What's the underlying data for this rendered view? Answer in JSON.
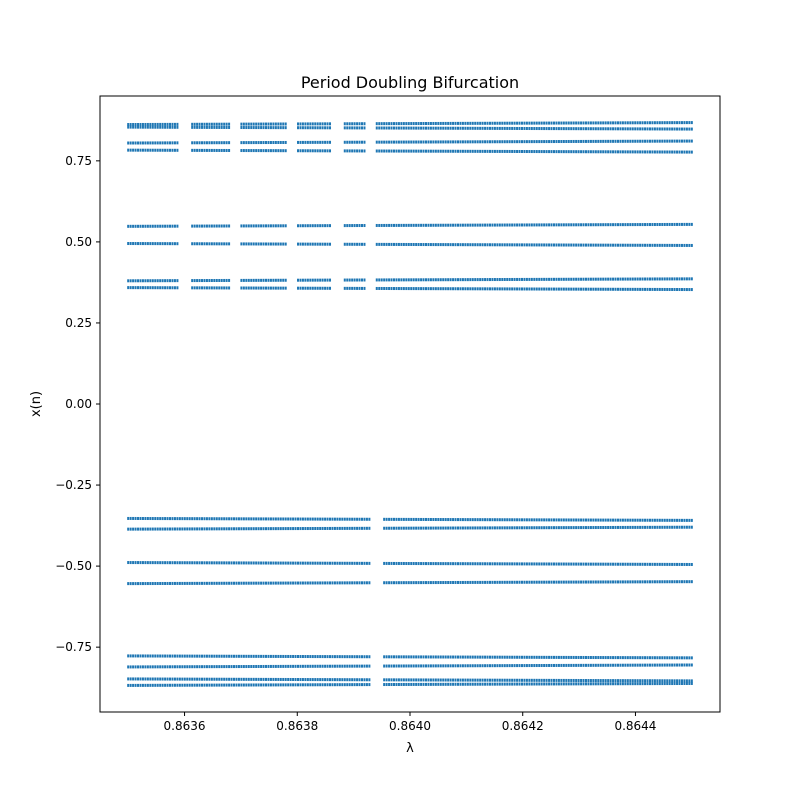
{
  "chart_data": {
    "type": "scatter",
    "title": "Period Doubling Bifurcation",
    "xlabel": "λ",
    "ylabel": "x(n)",
    "xlim": [
      0.86345,
      0.86455
    ],
    "ylim": [
      -0.95,
      0.95
    ],
    "x_ticks": [
      {
        "value": 0.8636,
        "label": "0.8636"
      },
      {
        "value": 0.8638,
        "label": "0.8638"
      },
      {
        "value": 0.864,
        "label": "0.8640"
      },
      {
        "value": 0.8642,
        "label": "0.8642"
      },
      {
        "value": 0.8644,
        "label": "0.8644"
      }
    ],
    "y_ticks": [
      {
        "value": 0.75,
        "label": "0.75"
      },
      {
        "value": 0.5,
        "label": "0.50"
      },
      {
        "value": 0.25,
        "label": "0.25"
      },
      {
        "value": 0.0,
        "label": "0.00"
      },
      {
        "value": -0.25,
        "label": "−0.25"
      },
      {
        "value": -0.5,
        "label": "−0.50"
      },
      {
        "value": -0.75,
        "label": "−0.75"
      }
    ],
    "grid": false,
    "marker_color": "#1f77b4",
    "x_range": [
      0.8635,
      0.8645
    ],
    "x_gaps_upper": [
      [
        0.86359,
        0.86361
      ],
      [
        0.86368,
        0.8637
      ],
      [
        0.86378,
        0.8638
      ],
      [
        0.86386,
        0.86388
      ],
      [
        0.86392,
        0.86394
      ]
    ],
    "x_gaps_lower": [
      [
        0.86393,
        0.86395
      ]
    ],
    "series": [
      {
        "branch_levels": [
          0.865,
          0.851,
          0.808,
          0.78,
          0.551,
          0.492,
          0.383,
          0.356,
          -0.356,
          -0.383,
          -0.492,
          -0.551,
          -0.78,
          -0.808,
          -0.851,
          -0.865
        ]
      }
    ]
  }
}
